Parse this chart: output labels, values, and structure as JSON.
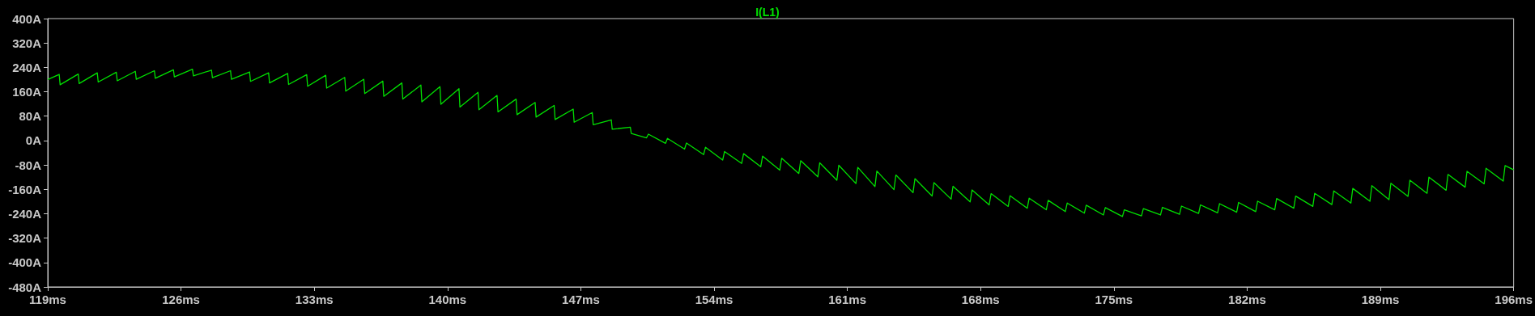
{
  "chart_data": {
    "type": "line",
    "title": "I(L1)",
    "xlim": [
      119,
      196
    ],
    "xticks": [
      {
        "value": 119,
        "label": "119ms"
      },
      {
        "value": 126,
        "label": "126ms"
      },
      {
        "value": 133,
        "label": "133ms"
      },
      {
        "value": 140,
        "label": "140ms"
      },
      {
        "value": 147,
        "label": "147ms"
      },
      {
        "value": 154,
        "label": "154ms"
      },
      {
        "value": 161,
        "label": "161ms"
      },
      {
        "value": 168,
        "label": "168ms"
      },
      {
        "value": 175,
        "label": "175ms"
      },
      {
        "value": 182,
        "label": "182ms"
      },
      {
        "value": 189,
        "label": "189ms"
      },
      {
        "value": 196,
        "label": "196ms"
      }
    ],
    "ylim": [
      -480,
      400
    ],
    "yticks": [
      {
        "value": -480,
        "label": "-480A"
      },
      {
        "value": -400,
        "label": "-400A"
      },
      {
        "value": -320,
        "label": "-320A"
      },
      {
        "value": -240,
        "label": "-240A"
      },
      {
        "value": -160,
        "label": "-160A"
      },
      {
        "value": -80,
        "label": "-80A"
      },
      {
        "value": 0,
        "label": "0A"
      },
      {
        "value": 80,
        "label": "80A"
      },
      {
        "value": 160,
        "label": "160A"
      },
      {
        "value": 240,
        "label": "240A"
      },
      {
        "value": 320,
        "label": "320A"
      },
      {
        "value": 400,
        "label": "400A"
      }
    ],
    "grid": false,
    "marker": "none",
    "line_style": "solid",
    "series": [
      {
        "color": "#00e000",
        "x": [
          119,
          119.6,
          119.65,
          120.6,
          120.65,
          121.6,
          121.65,
          122.6,
          122.65,
          123.6,
          123.65,
          124.6,
          124.65,
          125.6,
          125.65,
          126.6,
          126.65,
          127.6,
          127.65,
          128.6,
          128.65,
          129.6,
          129.65,
          130.6,
          130.65,
          131.6,
          131.65,
          132.6,
          132.65,
          133.6,
          133.65,
          134.6,
          134.65,
          135.6,
          135.65,
          136.6,
          136.65,
          137.6,
          137.65,
          138.6,
          138.65,
          139.6,
          139.65,
          140.6,
          140.65,
          141.6,
          141.65,
          142.6,
          142.65,
          143.6,
          143.65,
          144.6,
          144.65,
          145.6,
          145.65,
          146.6,
          146.65,
          147.6,
          147.65,
          148.6,
          148.65,
          149.6,
          149.65,
          150.45,
          150.55,
          151.45,
          151.55,
          152.45,
          152.55,
          153.45,
          153.55,
          154.45,
          154.55,
          155.45,
          155.55,
          156.45,
          156.55,
          157.45,
          157.55,
          158.45,
          158.55,
          159.45,
          159.55,
          160.45,
          160.55,
          161.45,
          161.55,
          162.45,
          162.55,
          163.45,
          163.55,
          164.45,
          164.55,
          165.45,
          165.55,
          166.45,
          166.55,
          167.45,
          167.55,
          168.45,
          168.55,
          169.45,
          169.55,
          170.45,
          170.55,
          171.45,
          171.55,
          172.45,
          172.55,
          173.45,
          173.55,
          174.45,
          174.55,
          175.45,
          175.55,
          176.45,
          176.55,
          177.45,
          177.55,
          178.45,
          178.55,
          179.45,
          179.55,
          180.45,
          180.55,
          181.45,
          181.55,
          182.45,
          182.55,
          183.45,
          183.55,
          184.45,
          184.55,
          185.45,
          185.55,
          186.45,
          186.55,
          187.45,
          187.55,
          188.45,
          188.55,
          189.45,
          189.55,
          190.45,
          190.55,
          191.45,
          191.55,
          192.45,
          192.55,
          193.45,
          193.55,
          194.45,
          194.55,
          195.45,
          195.55,
          196
        ],
        "values": [
          200,
          217,
          183,
          218,
          187,
          222,
          192,
          224,
          196,
          227,
          201,
          229,
          204,
          232,
          209,
          234,
          212,
          231,
          206,
          229,
          201,
          225,
          194,
          222,
          189,
          220,
          184,
          216,
          178,
          214,
          172,
          207,
          162,
          201,
          154,
          195,
          145,
          189,
          136,
          182,
          127,
          177,
          119,
          170,
          110,
          158,
          101,
          148,
          94,
          136,
          85,
          125,
          77,
          115,
          69,
          103,
          60,
          92,
          52,
          68,
          37,
          44,
          23,
          9,
          21,
          -9,
          7,
          -28,
          -8,
          -46,
          -22,
          -64,
          -36,
          -75,
          -43,
          -86,
          -51,
          -97,
          -58,
          -108,
          -66,
          -119,
          -73,
          -130,
          -81,
          -141,
          -88,
          -151,
          -100,
          -161,
          -113,
          -171,
          -125,
          -182,
          -138,
          -192,
          -150,
          -201,
          -162,
          -211,
          -174,
          -216,
          -181,
          -222,
          -189,
          -227,
          -196,
          -233,
          -205,
          -238,
          -212,
          -244,
          -220,
          -249,
          -227,
          -247,
          -223,
          -244,
          -219,
          -242,
          -215,
          -239,
          -211,
          -237,
          -207,
          -235,
          -203,
          -233,
          -199,
          -227,
          -190,
          -222,
          -182,
          -216,
          -173,
          -210,
          -165,
          -205,
          -157,
          -199,
          -148,
          -194,
          -140,
          -183,
          -130,
          -173,
          -120,
          -163,
          -111,
          -153,
          -101,
          -142,
          -91,
          -133,
          -82,
          -96
        ]
      }
    ]
  }
}
